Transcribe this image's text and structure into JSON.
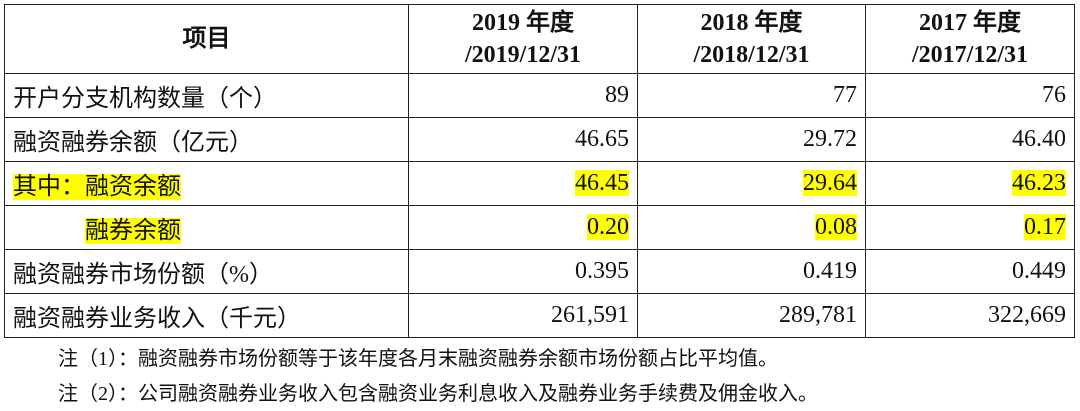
{
  "table": {
    "header": [
      {
        "lines": [
          "项目"
        ]
      },
      {
        "lines": [
          "2019 年度",
          "/2019/12/31"
        ]
      },
      {
        "lines": [
          "2018 年度",
          "/2018/12/31"
        ]
      },
      {
        "lines": [
          "2017 年度",
          "/2017/12/31"
        ]
      }
    ],
    "rows": [
      [
        "开户分支机构数量（个）",
        "89",
        "77",
        "76"
      ],
      [
        "融资融券余额（亿元）",
        "46.65",
        "29.72",
        "46.40"
      ],
      [
        "其中：融资余额",
        "46.45",
        "29.64",
        "46.23"
      ],
      [
        "融券余额",
        "0.20",
        "0.08",
        "0.17"
      ],
      [
        "融资融券市场份额（%）",
        "0.395",
        "0.419",
        "0.449"
      ],
      [
        "融资融券业务收入（千元）",
        "261,591",
        "289,781",
        "322,669"
      ]
    ]
  },
  "notes": [
    "注（1）：融资融券市场份额等于该年度各月末融资融券余额市场份额占比平均值。",
    "注（2）：公司融资融券业务收入包含融资业务利息收入及融券业务手续费及佣金收入。"
  ]
}
